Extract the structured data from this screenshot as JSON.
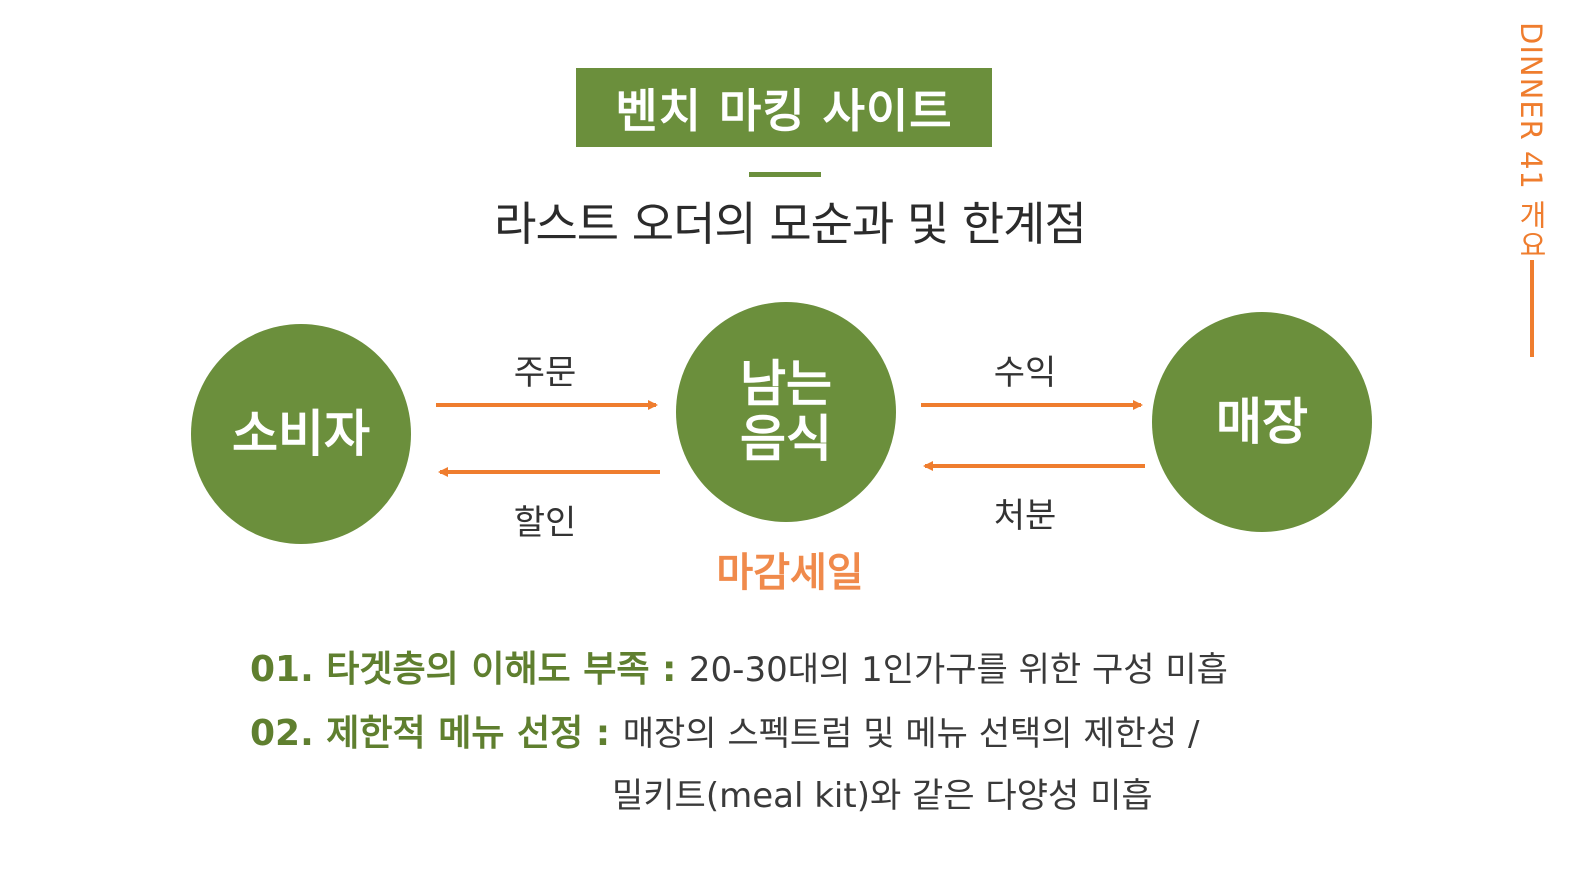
{
  "header": {
    "title": "벤치 마킹 사이트",
    "subtitle": "라스트 오더의 모순과  및 한계점"
  },
  "side": {
    "label": "DINNER 41 개요"
  },
  "diagram": {
    "nodes": {
      "consumer": "소비자",
      "food": "남는 음식",
      "store": "매장"
    },
    "edges": {
      "order": "주문",
      "discount": "할인",
      "profit": "수익",
      "dispose": "처분"
    },
    "caption": "마감세일"
  },
  "issues": [
    {
      "heading": "01. 타겟층의 이해도 부족 : ",
      "text": " 20-30대의 1인가구를 위한 구성 미흡"
    },
    {
      "heading": "02. 제한적 메뉴 선정 : ",
      "text": "매장의 스펙트럼 및 메뉴 선택의 제한성 /",
      "continuation": "밀키트(meal kit)와 같은 다양성 미흡"
    }
  ],
  "colors": {
    "green": "#6b8f3c",
    "orange": "#ef7d2e",
    "caption_orange": "#f08a4b"
  }
}
